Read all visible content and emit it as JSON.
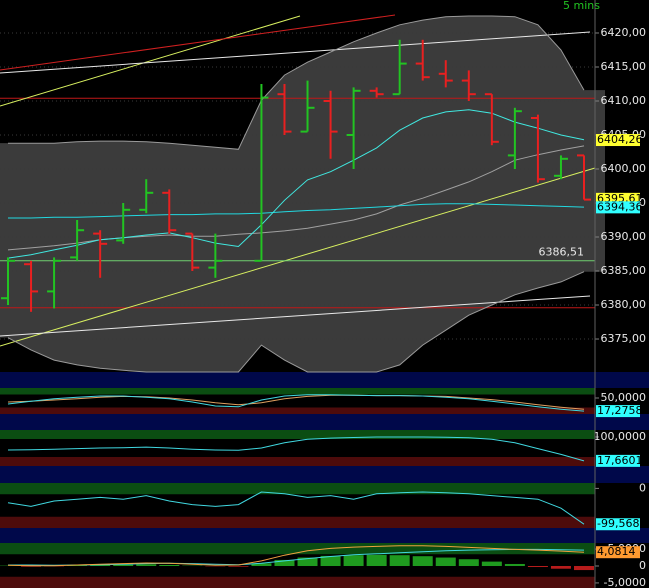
{
  "chart_data": [
    {
      "type": "ohlc",
      "timeframe": "5 mins",
      "categories": [
        null,
        null,
        null,
        null,
        null,
        null,
        null,
        null,
        null,
        null,
        null,
        null,
        null,
        null,
        null,
        null,
        null,
        null,
        null,
        null,
        null,
        null,
        null,
        null,
        null,
        null
      ],
      "open": [
        6381,
        6386,
        6382,
        6387,
        6390.5,
        6389.5,
        6394,
        6396.5,
        6390.5,
        6385.5,
        null,
        6386.5,
        6411,
        6405.5,
        6410,
        6405,
        6411.5,
        6411,
        6415.5,
        6414,
        6413,
        6411,
        6402,
        6407.5,
        6399,
        6402
      ],
      "high": [
        6387,
        6386.5,
        6387,
        6392.5,
        6391,
        6395,
        6398.5,
        6397,
        6390.5,
        6390.5,
        null,
        6412.5,
        6412.5,
        6413,
        6411.5,
        6412,
        6412,
        6419,
        6419,
        6416,
        6414.5,
        6411,
        6409,
        6408,
        6402,
        6402
      ],
      "low": [
        6380,
        6379,
        6379.5,
        6386.5,
        6384,
        6389,
        6393.5,
        6390.5,
        6385,
        6384,
        null,
        6386.5,
        6405,
        6405.5,
        6401.5,
        6400,
        6410.5,
        6411,
        6413,
        6412,
        6410,
        6403.5,
        6400,
        6398,
        6398.5,
        6395.5
      ],
      "close": [
        6386.5,
        6382,
        6386.5,
        6391,
        6389,
        6394,
        6396.5,
        6391,
        6385.5,
        6386.5,
        null,
        6410.5,
        6405.5,
        6409,
        6405.5,
        6411.5,
        6411,
        6415.5,
        6413.5,
        6413,
        6411,
        6404,
        6408.5,
        6398.5,
        6401.5,
        6395.5
      ],
      "up_color": "#22c422",
      "down_color": "#e82020",
      "bands": {
        "color": "#9a9a9a",
        "fill": "#3b3b3b",
        "upper": [
          6403.8,
          6403.8,
          6403.8,
          6404.0,
          6404.1,
          6404.1,
          6404.0,
          6403.8,
          6403.5,
          6403.2,
          6402.9,
          6410.1,
          6413.8,
          6415.7,
          6417.2,
          6418.7,
          6420.0,
          6421.2,
          6421.9,
          6422.4,
          6422.5,
          6422.5,
          6422.4,
          6421.2,
          6417.5,
          6411.6
        ],
        "lower": [
          6375.2,
          6373.4,
          6371.9,
          6371.2,
          6370.7,
          6370.4,
          6370.15,
          6370.15,
          6370.15,
          6370.15,
          6370.15,
          6374.1,
          6371.9,
          6370.15,
          6370.15,
          6370.15,
          6370.15,
          6371.2,
          6374.1,
          6376.3,
          6378.5,
          6380.0,
          6381.5,
          6382.5,
          6383.4,
          6384.9
        ]
      },
      "series": [
        {
          "color": "#a0a0a0",
          "values": [
            6388.1,
            6388.4,
            6388.7,
            6389.1,
            6389.6,
            6389.9,
            6390.1,
            6390.3,
            6390.1,
            6390.1,
            6390.4,
            6390.6,
            6390.9,
            6391.3,
            6391.9,
            6392.5,
            6393.4,
            6394.7,
            6395.7,
            6396.9,
            6398.1,
            6399.6,
            6401.3,
            6402.1,
            6402.8,
            6403.4
          ]
        },
        {
          "color": "#22d8e0",
          "values": [
            6392.8,
            6392.8,
            6392.9,
            6392.9,
            6393.0,
            6393.1,
            6393.2,
            6393.3,
            6393.3,
            6393.4,
            6393.4,
            6393.5,
            6393.7,
            6393.9,
            6394.0,
            6394.2,
            6394.4,
            6394.6,
            6394.8,
            6394.9,
            6394.9,
            6394.8,
            6394.7,
            6394.6,
            6394.5,
            6394.4
          ]
        },
        {
          "color": "#40e8e0",
          "values": [
            6386.9,
            6387.4,
            6388.1,
            6388.8,
            6389.6,
            6389.9,
            6390.3,
            6390.6,
            6389.9,
            6389.1,
            6388.6,
            6391.8,
            6395.4,
            6398.4,
            6399.6,
            6401.3,
            6403.1,
            6405.7,
            6407.5,
            6408.4,
            6408.7,
            6408.2,
            6406.9,
            6406.0,
            6405.0,
            6404.3
          ]
        }
      ],
      "red_levels": [
        6410.4,
        6379.6
      ],
      "red_level_color": "#c01818",
      "levels": [
        {
          "value": 6386.51,
          "label": "6386,51",
          "color": "#70d070"
        }
      ],
      "ylim": [
        6370.15,
        6424.85
      ],
      "yticks": [
        {
          "value": 6375,
          "label": "6375,00"
        },
        {
          "value": 6380,
          "label": "6380,00"
        },
        {
          "value": 6385,
          "label": "6385,00"
        },
        {
          "value": 6390,
          "label": "6390,00"
        },
        {
          "value": 6395,
          "label": "6395,00"
        },
        {
          "value": 6400,
          "label": "6400,00"
        },
        {
          "value": 6405,
          "label": "6405,00"
        },
        {
          "value": 6410,
          "label": "6410,00"
        },
        {
          "value": 6415,
          "label": "6415,00"
        },
        {
          "value": 6420,
          "label": "6420,00"
        }
      ],
      "grid": true,
      "tags": [
        {
          "value": 6404.26,
          "label": "6404,26",
          "color": "#ffff30"
        },
        {
          "value": 6395.61,
          "label": "6395,61",
          "color": "#ffff30"
        },
        {
          "value": 6394.36,
          "label": "6394,36",
          "color": "#30ffff"
        }
      ]
    },
    {
      "type": "line",
      "ylim": [
        10,
        75
      ],
      "yticks": [
        {
          "value": 50,
          "label": "50,0000"
        }
      ],
      "series": [
        {
          "color": "#e0a060",
          "values": [
            40,
            42,
            45,
            48,
            52,
            54,
            53,
            50,
            45,
            38,
            33,
            38,
            48,
            54,
            57,
            57,
            56,
            56,
            55,
            54,
            50,
            46,
            40,
            33,
            27,
            22
          ]
        },
        {
          "color": "#40d8e0",
          "values": [
            35,
            42,
            48,
            52,
            55,
            55,
            52,
            48,
            40,
            30,
            28,
            45,
            55,
            58,
            58,
            57,
            56,
            56,
            55,
            52,
            48,
            42,
            35,
            28,
            22,
            17.28
          ]
        }
      ],
      "tags": [
        {
          "value": 17.2758,
          "label": "17,2758",
          "color": "#30ffff"
        }
      ]
    },
    {
      "type": "line",
      "ylim": [
        0,
        124
      ],
      "yticks": [
        {
          "value": 100,
          "label": "100,0000"
        }
      ],
      "series": [
        {
          "color": "#40d8e0",
          "values": [
            55,
            56,
            58,
            60,
            62,
            63,
            65,
            62,
            58,
            55,
            54,
            62,
            80,
            92,
            96,
            98,
            100,
            100,
            100,
            99,
            97,
            92,
            80,
            60,
            40,
            17.66
          ]
        }
      ],
      "tags": [
        {
          "value": 17.6601,
          "label": "17,6601",
          "color": "#30ffff"
        }
      ]
    },
    {
      "type": "line",
      "ylim": [
        -110,
        15
      ],
      "yticks": [
        0
      ],
      "series": [
        {
          "color": "#40d8e0",
          "values": [
            -40,
            -50,
            -35,
            -30,
            -25,
            -30,
            -20,
            -35,
            -45,
            -50,
            -45,
            -10,
            -15,
            -25,
            -20,
            -30,
            -15,
            -12,
            -10,
            -12,
            -15,
            -20,
            -25,
            -30,
            -55,
            -99.57
          ]
        }
      ],
      "tags": [
        {
          "value": -99.5686,
          "label": "-99,5686",
          "color": "#30ffff"
        }
      ]
    },
    {
      "type": "line",
      "ylim": [
        -6.5,
        6.8
      ],
      "yticks": [
        {
          "value": 5,
          "label": "5,0000"
        },
        0,
        {
          "value": -5,
          "label": "-5,0000"
        }
      ],
      "series": [
        {
          "style": "histogram",
          "color": "#1f9a1f",
          "negative_color": "#b81c1c",
          "values": [
            0.1,
            -0.2,
            -0.1,
            0.2,
            0.3,
            0.4,
            0.5,
            0.3,
            0.1,
            -0.1,
            -0.2,
            0.8,
            1.8,
            2.5,
            3.0,
            3.2,
            3.3,
            3.2,
            2.9,
            2.5,
            2.0,
            1.3,
            0.6,
            -0.3,
            -0.8,
            -1.2
          ]
        },
        {
          "color": "#40d8e0",
          "values": [
            0.3,
            0.3,
            0.2,
            0.3,
            0.4,
            0.5,
            0.7,
            0.8,
            0.7,
            0.5,
            0.4,
            0.8,
            1.5,
            2.2,
            2.8,
            3.3,
            3.6,
            3.9,
            4.2,
            4.5,
            4.7,
            4.8,
            4.9,
            4.9,
            4.8,
            4.7
          ]
        },
        {
          "color": "#f0a040",
          "values": [
            0.2,
            0.1,
            0.1,
            0.3,
            0.5,
            0.7,
            0.9,
            0.8,
            0.5,
            0.2,
            0.3,
            1.5,
            3.2,
            4.5,
            5.2,
            5.6,
            5.8,
            6.0,
            6.0,
            5.8,
            5.5,
            5.2,
            4.9,
            4.7,
            4.4,
            4.08
          ]
        }
      ],
      "tags": [
        {
          "value": 4.0814,
          "label": "4,0814",
          "color": "#ff9a30"
        }
      ]
    }
  ]
}
